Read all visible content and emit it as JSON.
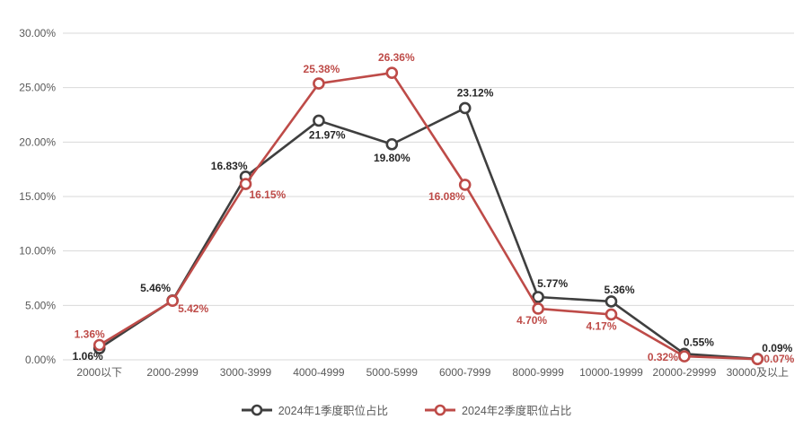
{
  "chart_data": {
    "type": "line",
    "title": "",
    "categories": [
      "2000以下",
      "2000-2999",
      "3000-3999",
      "4000-4999",
      "5000-5999",
      "6000-7999",
      "8000-9999",
      "10000-19999",
      "20000-29999",
      "30000及以上"
    ],
    "series": [
      {
        "name": "2024年1季度职位占比",
        "color": "#3F3F3F",
        "label_color": "#262626",
        "values": [
          1.06,
          5.46,
          16.83,
          21.97,
          19.8,
          23.12,
          5.77,
          5.36,
          0.55,
          0.09
        ],
        "labels": [
          "1.06%",
          "5.46%",
          "16.83%",
          "21.97%",
          "19.80%",
          "23.12%",
          "5.77%",
          "5.36%",
          "0.55%",
          "0.09%"
        ]
      },
      {
        "name": "2024年2季度职位占比",
        "color": "#BE4B48",
        "label_color": "#BE4B48",
        "values": [
          1.36,
          5.42,
          16.15,
          25.38,
          26.36,
          16.08,
          4.7,
          4.17,
          0.32,
          0.07
        ],
        "labels": [
          "1.36%",
          "5.42%",
          "16.15%",
          "25.38%",
          "26.36%",
          "16.08%",
          "4.70%",
          "4.17%",
          "0.32%",
          "0.07%"
        ]
      }
    ],
    "y_axis": {
      "min": 0,
      "max": 30,
      "tick_step": 5,
      "tick_labels": [
        "0.00%",
        "5.00%",
        "10.00%",
        "15.00%",
        "20.00%",
        "25.00%",
        "30.00%"
      ]
    },
    "x_axis": {
      "label": ""
    },
    "grid": true,
    "legend_position": "bottom",
    "colors": {
      "background": "#FFFFFF",
      "gridline": "#D9D9D9",
      "axis_text": "#595959",
      "legend_text": "#595959"
    }
  }
}
